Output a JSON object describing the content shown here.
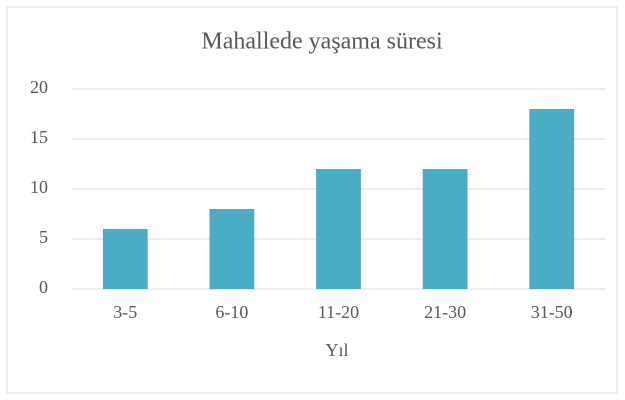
{
  "chart_data": {
    "type": "bar",
    "title": "Mahallede yaşama süresi",
    "x_label": "Yıl",
    "categories": [
      "3-5",
      "6-10",
      "11-20",
      "21-30",
      "31-50"
    ],
    "values": [
      6,
      8,
      12,
      12,
      18
    ],
    "color": "#4bacc6",
    "ylim": [
      0,
      20
    ],
    "yticks": [
      0,
      5,
      10,
      15,
      20
    ],
    "grid": true
  }
}
